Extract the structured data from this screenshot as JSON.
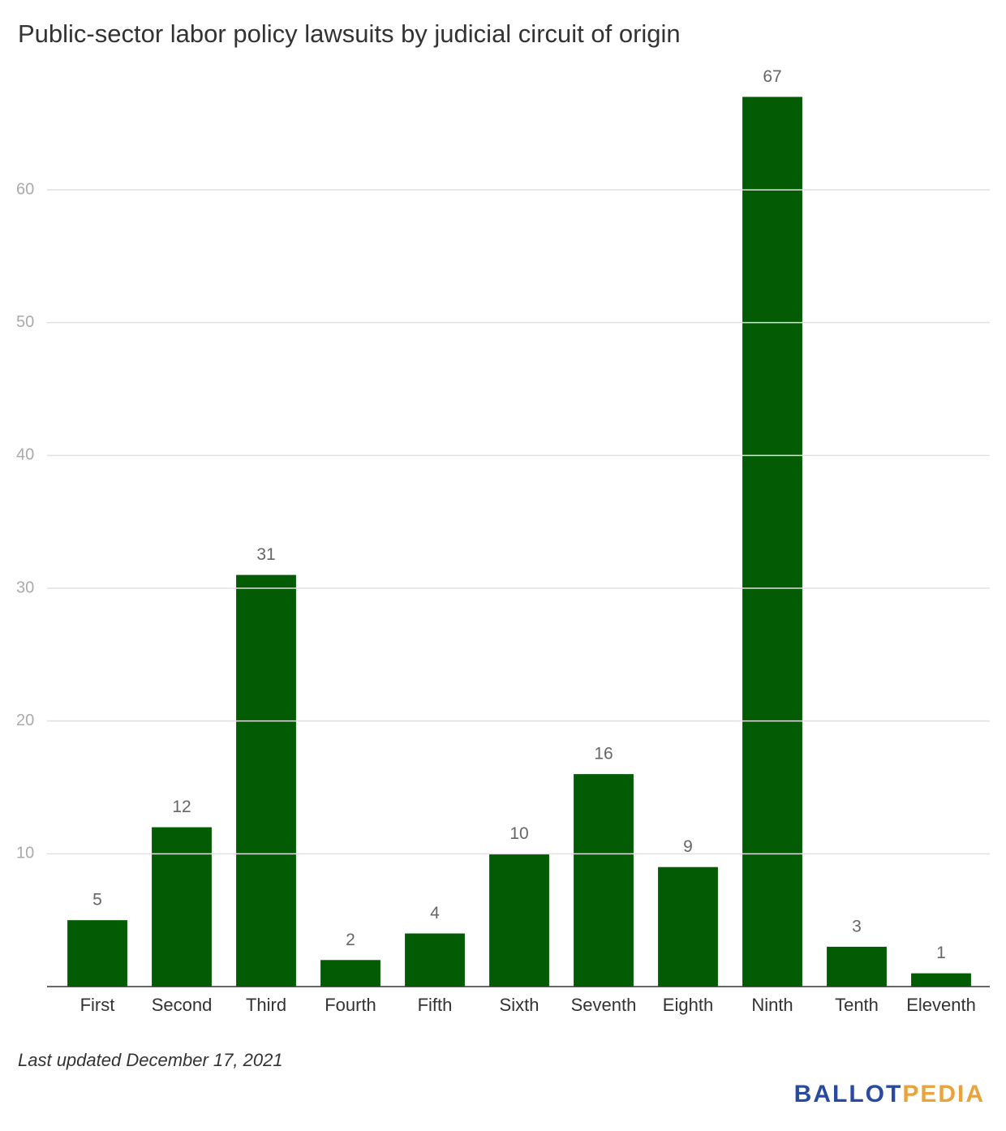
{
  "chart_data": {
    "type": "bar",
    "title": "Public-sector labor policy lawsuits by judicial circuit of origin",
    "categories": [
      "First",
      "Second",
      "Third",
      "Fourth",
      "Fifth",
      "Sixth",
      "Seventh",
      "Eighth",
      "Ninth",
      "Tenth",
      "Eleventh"
    ],
    "values": [
      5,
      12,
      31,
      2,
      4,
      10,
      16,
      9,
      67,
      3,
      1
    ],
    "color": "#035b04",
    "ylim": [
      0,
      70
    ],
    "yticks": [
      10,
      20,
      30,
      40,
      50,
      60
    ],
    "grid": true
  },
  "footer": {
    "note": "Last updated December 17, 2021",
    "logo": [
      "BALLOT",
      "PEDIA"
    ]
  }
}
